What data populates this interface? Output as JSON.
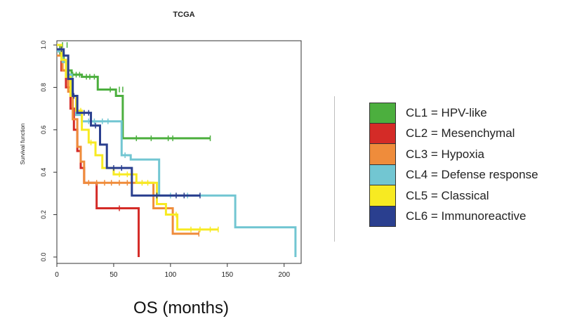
{
  "chart_data": {
    "type": "line",
    "title": "TCGA",
    "xlabel": "OS (months)",
    "ylabel": "Survival function",
    "xlim": [
      0,
      215
    ],
    "ylim": [
      -0.03,
      1.02
    ],
    "xticks": [
      0,
      50,
      100,
      150,
      200
    ],
    "yticks": [
      0.0,
      0.2,
      0.4,
      0.6,
      0.8,
      1.0
    ],
    "legend_position": "right",
    "series": [
      {
        "name": "CL1 = HPV-like",
        "color": "#4caf3e",
        "steps": [
          [
            0,
            1.0
          ],
          [
            3,
            0.96
          ],
          [
            6,
            0.92
          ],
          [
            9,
            0.88
          ],
          [
            13,
            0.86
          ],
          [
            22,
            0.85
          ],
          [
            36,
            0.79
          ],
          [
            52,
            0.76
          ],
          [
            58,
            0.56
          ],
          [
            135,
            0.56
          ]
        ],
        "censors": [
          [
            5,
            1.0
          ],
          [
            9,
            1.0
          ],
          [
            14,
            0.86
          ],
          [
            17,
            0.86
          ],
          [
            20,
            0.86
          ],
          [
            26,
            0.85
          ],
          [
            29,
            0.85
          ],
          [
            33,
            0.85
          ],
          [
            47,
            0.79
          ],
          [
            55,
            0.79
          ],
          [
            58,
            0.79
          ],
          [
            70,
            0.56
          ],
          [
            83,
            0.56
          ],
          [
            98,
            0.56
          ],
          [
            102,
            0.56
          ],
          [
            135,
            0.56
          ]
        ]
      },
      {
        "name": "CL2 = Mesenchymal",
        "color": "#d42b27",
        "steps": [
          [
            0,
            0.97
          ],
          [
            4,
            0.88
          ],
          [
            8,
            0.8
          ],
          [
            12,
            0.7
          ],
          [
            15,
            0.6
          ],
          [
            18,
            0.5
          ],
          [
            21,
            0.42
          ],
          [
            24,
            0.35
          ],
          [
            35,
            0.23
          ],
          [
            72,
            0.23
          ],
          [
            72,
            0.0
          ]
        ],
        "censors": [
          [
            55,
            0.23
          ]
        ]
      },
      {
        "name": "CL3 = Hypoxia",
        "color": "#ef8c3b",
        "steps": [
          [
            0,
            0.95
          ],
          [
            5,
            0.88
          ],
          [
            10,
            0.78
          ],
          [
            14,
            0.65
          ],
          [
            18,
            0.52
          ],
          [
            21,
            0.45
          ],
          [
            24,
            0.35
          ],
          [
            85,
            0.23
          ],
          [
            102,
            0.11
          ],
          [
            125,
            0.11
          ]
        ],
        "censors": [
          [
            28,
            0.35
          ],
          [
            35,
            0.35
          ],
          [
            42,
            0.35
          ],
          [
            48,
            0.35
          ],
          [
            55,
            0.35
          ],
          [
            62,
            0.35
          ],
          [
            125,
            0.11
          ]
        ]
      },
      {
        "name": "CL4 = Defense response",
        "color": "#72c6d2",
        "steps": [
          [
            0,
            0.97
          ],
          [
            5,
            0.92
          ],
          [
            9,
            0.86
          ],
          [
            13,
            0.76
          ],
          [
            17,
            0.67
          ],
          [
            22,
            0.64
          ],
          [
            57,
            0.48
          ],
          [
            65,
            0.46
          ],
          [
            90,
            0.29
          ],
          [
            157,
            0.14
          ],
          [
            210,
            0.0
          ]
        ],
        "censors": [
          [
            28,
            0.64
          ],
          [
            33,
            0.64
          ],
          [
            40,
            0.64
          ],
          [
            45,
            0.64
          ],
          [
            60,
            0.48
          ],
          [
            100,
            0.29
          ],
          [
            115,
            0.29
          ]
        ]
      },
      {
        "name": "CL5 = Classical",
        "color": "#f7ea22",
        "steps": [
          [
            0,
            1.0
          ],
          [
            4,
            0.93
          ],
          [
            8,
            0.85
          ],
          [
            12,
            0.76
          ],
          [
            17,
            0.69
          ],
          [
            22,
            0.6
          ],
          [
            28,
            0.54
          ],
          [
            34,
            0.48
          ],
          [
            40,
            0.42
          ],
          [
            50,
            0.39
          ],
          [
            70,
            0.35
          ],
          [
            88,
            0.25
          ],
          [
            96,
            0.2
          ],
          [
            106,
            0.13
          ],
          [
            142,
            0.13
          ]
        ],
        "censors": [
          [
            21,
            0.69
          ],
          [
            30,
            0.54
          ],
          [
            55,
            0.39
          ],
          [
            62,
            0.39
          ],
          [
            75,
            0.35
          ],
          [
            80,
            0.35
          ],
          [
            105,
            0.2
          ],
          [
            118,
            0.13
          ],
          [
            126,
            0.13
          ],
          [
            135,
            0.13
          ],
          [
            142,
            0.13
          ]
        ]
      },
      {
        "name": "CL6 = Immunoreactive",
        "color": "#2a3f8f",
        "steps": [
          [
            0,
            0.98
          ],
          [
            6,
            0.95
          ],
          [
            10,
            0.84
          ],
          [
            14,
            0.76
          ],
          [
            18,
            0.68
          ],
          [
            30,
            0.62
          ],
          [
            38,
            0.53
          ],
          [
            44,
            0.42
          ],
          [
            66,
            0.29
          ],
          [
            126,
            0.29
          ]
        ],
        "censors": [
          [
            4,
            0.98
          ],
          [
            15,
            0.76
          ],
          [
            24,
            0.68
          ],
          [
            28,
            0.68
          ],
          [
            34,
            0.62
          ],
          [
            50,
            0.42
          ],
          [
            57,
            0.42
          ],
          [
            88,
            0.29
          ],
          [
            105,
            0.29
          ],
          [
            112,
            0.29
          ],
          [
            126,
            0.29
          ]
        ]
      }
    ]
  }
}
